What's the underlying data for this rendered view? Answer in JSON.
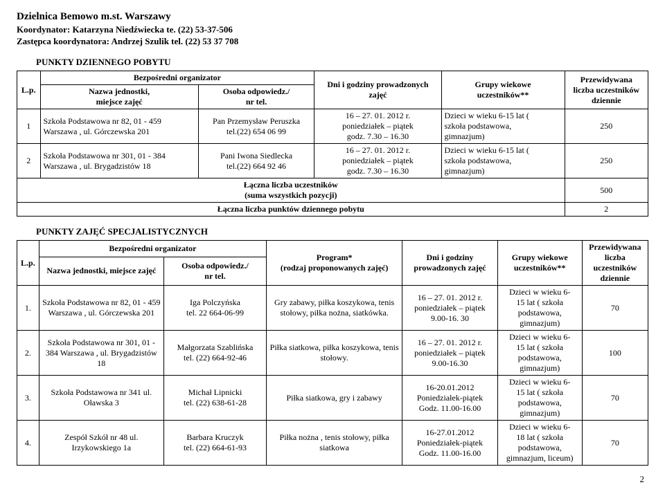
{
  "header": {
    "district": "Dzielnica Bemowo m.st. Warszawy",
    "coordinator": "Koordynator: Katarzyna Niedźwiecka te. (22) 53-37-506",
    "deputy": "Zastępca koordynatora: Andrzej Szulik tel. (22) 53 37 708"
  },
  "section1": {
    "title": "PUNKTY DZIENNEGO POBYTU",
    "headers": {
      "lp": "L.p.",
      "org": "Bezpośredni organizator",
      "unit": "Nazwa jednostki,\nmiejsce zajęć",
      "person": "Osoba odpowiedz./\nnr tel.",
      "days": "Dni i godziny prowadzonych\nzajęć",
      "groups": "Grupy wiekowe\nuczestników**",
      "forecast": "Przewidywana\nliczba uczestników\ndziennie"
    },
    "rows": [
      {
        "lp": "1",
        "unit": "Szkoła Podstawowa nr 82, 01 - 459 Warszawa , ul. Górczewska 201",
        "person": "Pan Przemysław Peruszka\ntel.(22) 654 06 99",
        "days": "16 – 27. 01. 2012 r.\nponiedziałek – piątek\ngodz. 7.30 – 16.30",
        "groups": "Dzieci w wieku 6-15 lat (\nszkoła podstawowa,\ngimnazjum)",
        "forecast": "250"
      },
      {
        "lp": "2",
        "unit": "Szkoła Podstawowa nr 301, 01 - 384 Warszawa , ul. Brygadzistów 18",
        "person": "Pani Iwona Siedlecka\ntel.(22) 664 92 46",
        "days": "16 – 27. 01. 2012 r.\nponiedziałek – piątek\ngodz. 7.30 – 16.30",
        "groups": "Dzieci w wieku 6-15 lat (\nszkoła podstawowa,\ngimnazjum)",
        "forecast": "250"
      }
    ],
    "summary1_label": "Łączna liczba uczestników\n(suma wszystkich pozycji)",
    "summary1_value": "500",
    "summary2_label": "Łączna liczba punktów dziennego pobytu",
    "summary2_value": "2"
  },
  "section2": {
    "title": "PUNKTY ZAJĘĆ SPECJALISTYCZNYCH",
    "headers": {
      "lp": "L.p.",
      "org": "Bezpośredni organizator",
      "unit": "Nazwa jednostki, miejsce zajęć",
      "person": "Osoba odpowiedz./\nnr tel.",
      "program": "Program*\n(rodzaj proponowanych zajęć)",
      "days": "Dni i godziny\nprowadzonych zajęć",
      "groups": "Grupy wiekowe\nuczestników**",
      "forecast": "Przewidywana\nliczba\nuczestników\ndziennie"
    },
    "rows": [
      {
        "lp": "1.",
        "unit": "Szkoła Podstawowa  nr 82, 01 - 459 Warszawa , ul. Górczewska 201",
        "person": "Iga Polczyńska\ntel. 22 664-06-99",
        "program": "Gry zabawy, piłka koszykowa, tenis stołowy, piłka nożna, siatkówka.",
        "days": "16 – 27. 01. 2012 r.\nponiedziałek – piątek\n9.00-16. 30",
        "groups": "Dzieci w wieku 6-\n15 lat ( szkoła\npodstawowa,\ngimnazjum)",
        "forecast": "70"
      },
      {
        "lp": "2.",
        "unit": "Szkoła Podstawowa nr 301, 01 - 384 Warszawa , ul. Brygadzistów 18",
        "person": "Małgorzata Szablińska\ntel. (22) 664-92-46",
        "program": "Piłka siatkowa, piłka koszykowa, tenis stołowy.",
        "days": "16 – 27. 01. 2012 r.\nponiedziałek – piątek\n9.00-16.30",
        "groups": "Dzieci w wieku 6-\n15 lat ( szkoła\npodstawowa,\ngimnazjum)",
        "forecast": "100"
      },
      {
        "lp": "3.",
        "unit": "Szkoła Podstawowa nr 341 ul. Oławska 3",
        "person": "Michał Lipnicki\ntel. (22) 638-61-28",
        "program": "Piłka siatkowa, gry i zabawy",
        "days": "16-20.01.2012\nPoniedziałek-piątek\nGodz. 11.00-16.00",
        "groups": "Dzieci w wieku 6-\n15 lat ( szkoła\npodstawowa,\ngimnazjum)",
        "forecast": "70"
      },
      {
        "lp": "4.",
        "unit": "Zespół  Szkół nr 48 ul. Irzykowskiego 1a",
        "person": "Barbara Kruczyk\ntel. (22) 664-61-93",
        "program": "Piłka nożna , tenis stołowy, piłka siatkowa",
        "days": "16-27.01.2012\nPoniedziałek-piątek\nGodz. 11.00-16.00",
        "groups": "Dzieci w wieku 6-\n18 lat ( szkoła\npodstawowa,\ngimnazjum, liceum)",
        "forecast": "70"
      }
    ]
  },
  "page_number": "2"
}
